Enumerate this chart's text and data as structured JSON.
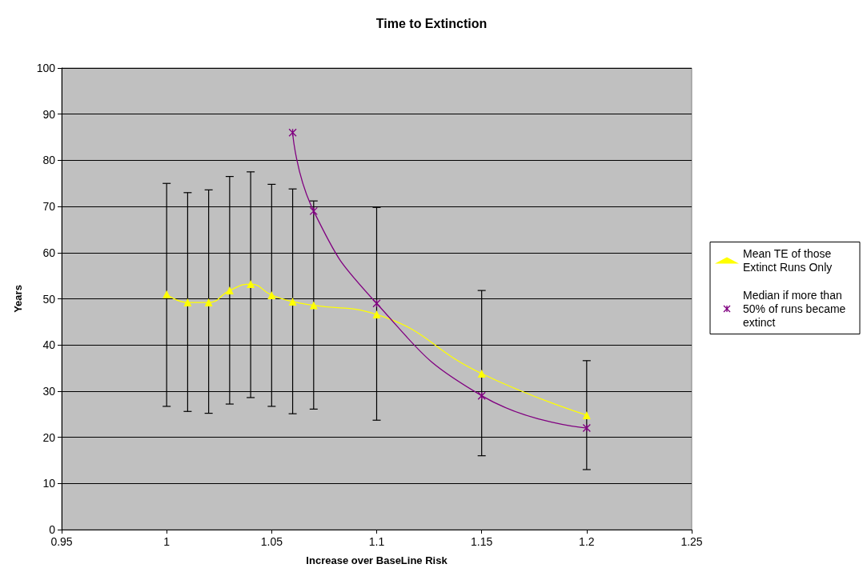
{
  "chart_data": {
    "type": "line",
    "title": "Time to Extinction",
    "xlabel": "Increase over BaseLine Risk",
    "ylabel": "Years",
    "xlim": [
      0.95,
      1.25
    ],
    "xticks": [
      0.95,
      1,
      1.05,
      1.1,
      1.15,
      1.2,
      1.25
    ],
    "ylim": [
      0,
      100
    ],
    "yticks": [
      0,
      10,
      20,
      30,
      40,
      50,
      60,
      70,
      80,
      90,
      100
    ],
    "grid": "y",
    "legend": "right",
    "series": [
      {
        "name": "Mean TE of those Extinct Runs Only",
        "color": "#ffff00",
        "marker": "triangle",
        "x": [
          1,
          1.01,
          1.02,
          1.03,
          1.04,
          1.05,
          1.06,
          1.07,
          1.1,
          1.15,
          1.2
        ],
        "values": [
          51,
          49.2,
          49.2,
          51.8,
          53.2,
          50.8,
          49.4,
          48.6,
          46.6,
          33.8,
          24.8
        ],
        "errors": [
          [
            26.7,
            75
          ],
          [
            25.6,
            73
          ],
          [
            25.2,
            73.6
          ],
          [
            27.2,
            76.5
          ],
          [
            28.6,
            77.5
          ],
          [
            26.7,
            74.8
          ],
          [
            25.1,
            73.8
          ],
          [
            26.1,
            71.2
          ],
          [
            23.7,
            69.8
          ],
          [
            16,
            51.8
          ],
          [
            13,
            36.6
          ]
        ]
      },
      {
        "name": "Median if more than 50% of runs became extinct",
        "color": "#800080",
        "marker": "cross",
        "x": [
          1.06,
          1.07,
          1.1,
          1.15,
          1.2
        ],
        "values": [
          86,
          69,
          49,
          29,
          22
        ]
      }
    ]
  }
}
